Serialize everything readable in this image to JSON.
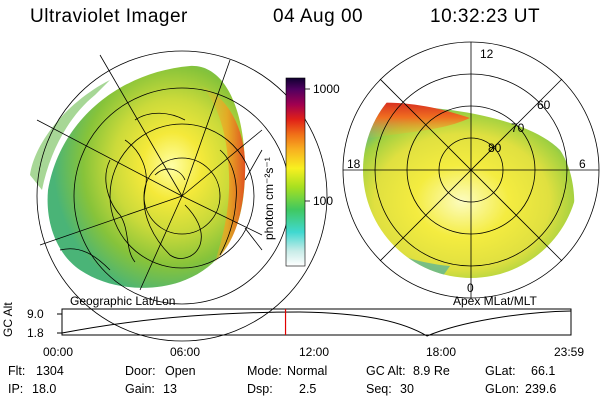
{
  "header": {
    "instrument": "Ultraviolet Imager",
    "date": "04 Aug 00",
    "time": "10:32:23 UT"
  },
  "left_panel": {
    "label": "Geographic Lat/Lon"
  },
  "right_panel": {
    "label": "Apex MLat/MLT",
    "hour_labels": {
      "top": "12",
      "left": "18",
      "right": "6",
      "bottom": "0"
    },
    "lat_labels": [
      "60",
      "70",
      "80"
    ]
  },
  "colorbar": {
    "unit_label": "photon cm⁻²s⁻¹",
    "ticks": [
      "1000",
      "100"
    ]
  },
  "altitude_plot": {
    "ylabel": "GC Alt",
    "yticks": [
      "9.0",
      "1.8"
    ],
    "xticks": [
      "00:00",
      "06:00",
      "12:00",
      "18:00",
      "23:59"
    ],
    "marker_hour": 10.54,
    "marker_color": "#e00000"
  },
  "info": {
    "flt_label": "Flt:",
    "flt_value": "1304",
    "ip_label": "IP:",
    "ip_value": "18.0",
    "door_label": "Door:",
    "door_value": "Open",
    "gain_label": "Gain:",
    "gain_value": "13",
    "mode_label": "Mode:",
    "mode_value": "Normal",
    "dsp_label": "Dsp:",
    "dsp_value": "2.5",
    "gcalt_label": "GC Alt:",
    "gcalt_value": "8.9 Re",
    "seq_label": "Seq:",
    "seq_value": "30",
    "glat_label": "GLat:",
    "glat_value": "66.1",
    "glon_label": "GLon:",
    "glon_value": "239.6"
  }
}
